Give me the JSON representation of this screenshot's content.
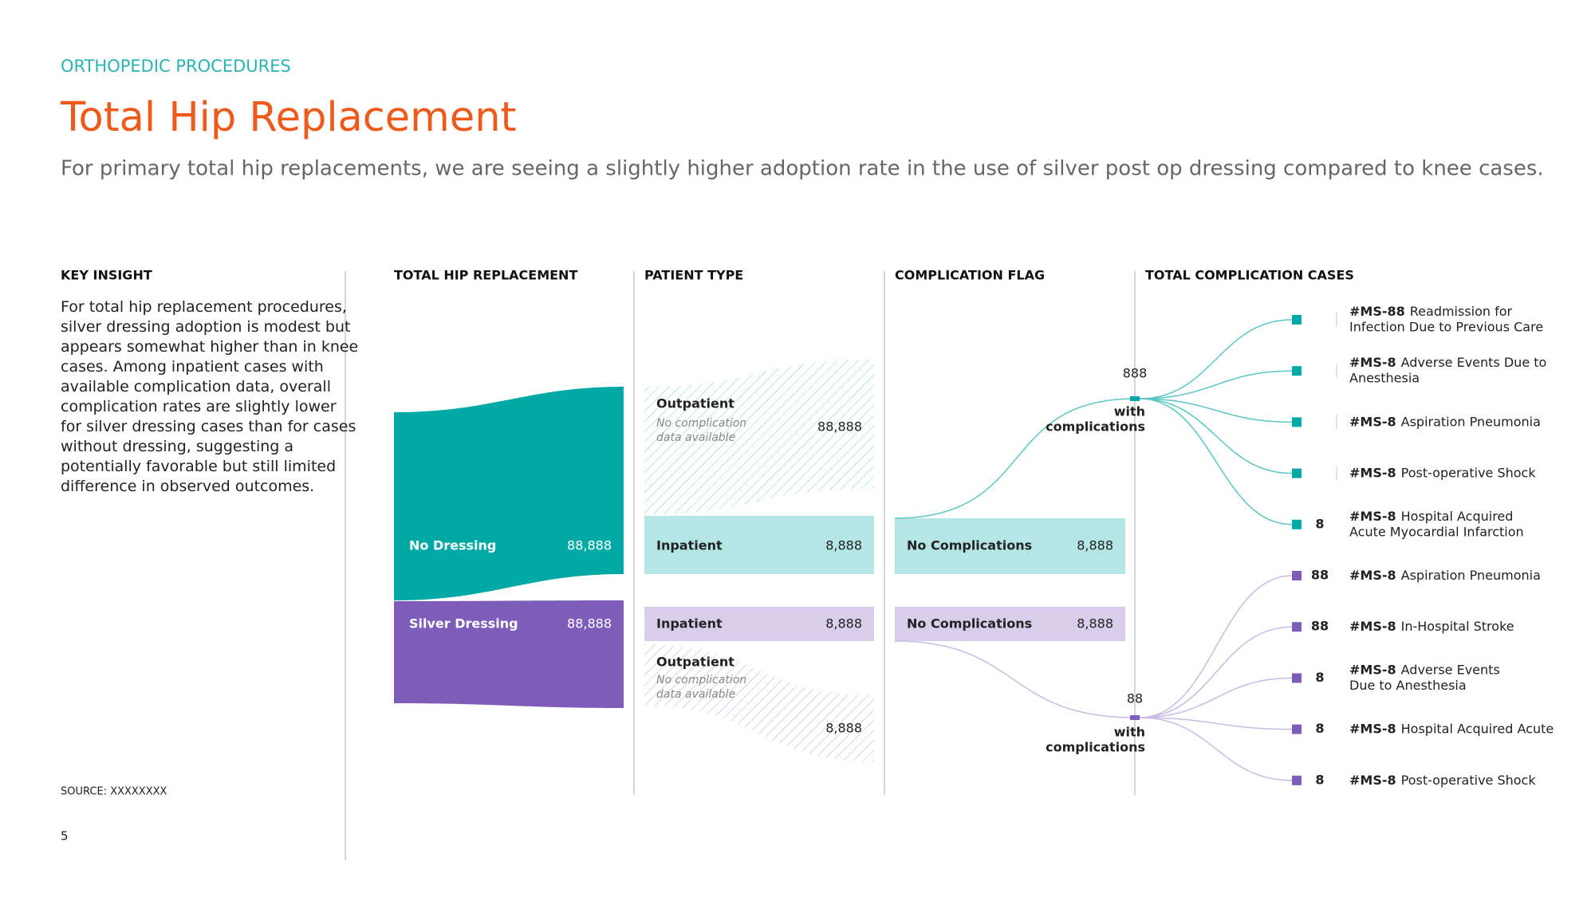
{
  "header": {
    "section": "ORTHOPEDIC PROCEDURES",
    "title": "Total Hip Replacement",
    "subtitle": "For primary total hip replacements, we are seeing a slightly higher adoption rate in the use of silver post op dressing compared to knee cases."
  },
  "insight": {
    "heading": "KEY INSIGHT",
    "text": "For total hip replacement procedures, silver dressing adoption is modest but appears somewhat higher than in knee cases. Among inpatient cases with available complication data, overall complication rates are slightly lower for silver dressing cases than for cases without dressing, suggesting a potentially favorable but still limited difference in observed outcomes."
  },
  "source": "SOURCE:  XXXXXXXX",
  "page": "5",
  "columns": [
    "TOTAL HIP REPLACEMENT",
    "PATIENT TYPE",
    "COMPLICATION FLAG",
    "TOTAL COMPLICATION CASES"
  ],
  "groups": [
    {
      "name": "No Dressing",
      "value": "88,888",
      "outpatient": {
        "label": "Outpatient",
        "note": [
          "No complication",
          "data available"
        ],
        "value": "88,888"
      },
      "inpatient": {
        "label": "Inpatient",
        "value": "8,888"
      },
      "flag": {
        "label": "No Complications",
        "value": "8,888"
      },
      "with": {
        "value": "888",
        "label": [
          "with",
          "complications"
        ]
      },
      "cases": [
        {
          "code": "#MS-88",
          "text": [
            "Readmission for",
            "Infection Due to Previous Care"
          ]
        },
        {
          "code": "#MS-8",
          "text": [
            "Adverse Events Due to",
            "Anesthesia"
          ]
        },
        {
          "code": "#MS-8",
          "text": [
            "Aspiration Pneumonia"
          ]
        },
        {
          "code": "#MS-8",
          "text": [
            "Post-operative Shock"
          ]
        },
        {
          "code": "#MS-8",
          "text": [
            "Hospital Acquired",
            "Acute Myocardial Infarction"
          ],
          "count": "8"
        }
      ]
    },
    {
      "name": "Silver Dressing",
      "value": "88,888",
      "outpatient": {
        "label": "Outpatient",
        "note": [
          "No complication",
          "data available"
        ],
        "value": "8,888"
      },
      "inpatient": {
        "label": "Inpatient",
        "value": "8,888"
      },
      "flag": {
        "label": "No Complications",
        "value": "8,888"
      },
      "with": {
        "value": "88",
        "label": [
          "with",
          "complications"
        ]
      },
      "cases": [
        {
          "code": "#MS-8",
          "text": [
            "Aspiration Pneumonia"
          ],
          "count": "88"
        },
        {
          "code": "#MS-8",
          "text": [
            "In-Hospital Stroke"
          ],
          "count": "88"
        },
        {
          "code": "#MS-8",
          "text": [
            "Adverse Events",
            "Due to Anesthesia"
          ],
          "count": "8"
        },
        {
          "code": "#MS-8",
          "text": [
            "Hospital Acquired Acute"
          ],
          "count": "8"
        },
        {
          "code": "#MS-8",
          "text": [
            "Post-operative Shock"
          ],
          "count": "8"
        }
      ]
    }
  ]
}
